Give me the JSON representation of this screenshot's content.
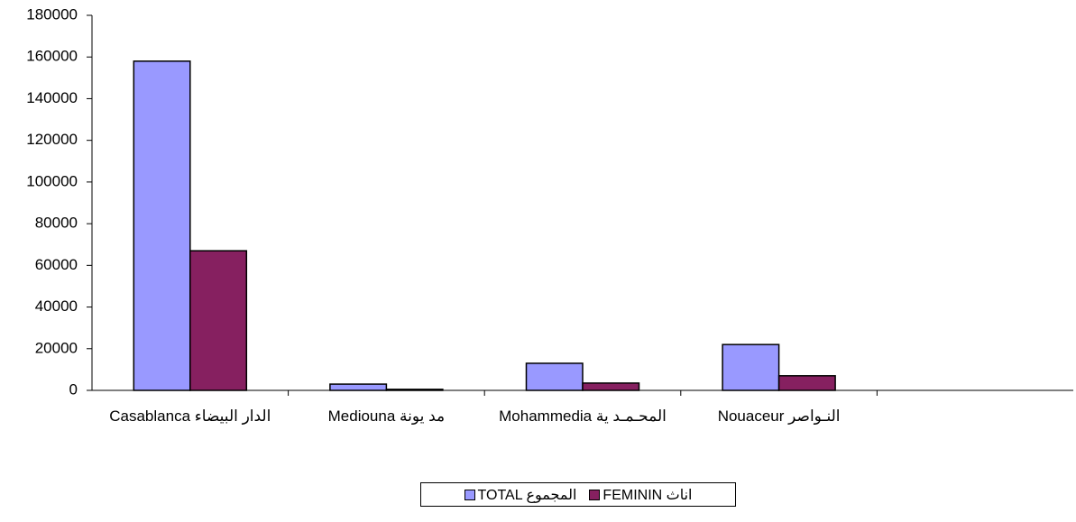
{
  "chart_data": {
    "type": "bar",
    "categories": [
      "Casablanca الدار البيضاء",
      "Mediouna مد يونة",
      "Mohammedia المحـمـد ية",
      "Nouaceur النـواصر",
      null
    ],
    "series": [
      {
        "name": "TOTAL المجموع",
        "color": "#9999ff",
        "values": [
          158000,
          3000,
          13000,
          22000,
          null
        ]
      },
      {
        "name": "FEMININ اناث",
        "color": "#862060",
        "values": [
          67000,
          500,
          3500,
          7000,
          null
        ]
      }
    ],
    "ylim": [
      0,
      180000
    ],
    "yticks": [
      0,
      20000,
      40000,
      60000,
      80000,
      100000,
      120000,
      140000,
      160000,
      180000
    ],
    "legend": "bottom"
  }
}
